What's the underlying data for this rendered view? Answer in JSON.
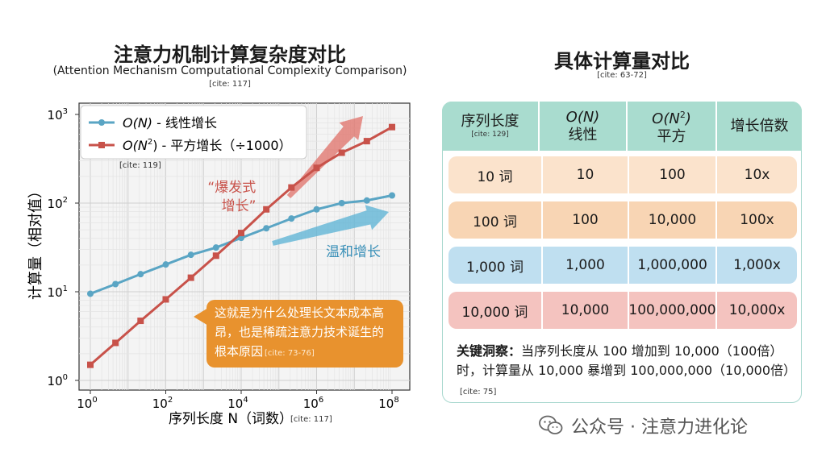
{
  "left": {
    "title": "注意力机制计算复杂度对比",
    "subtitle": "(Attention Mechanism Computational Complexity Comparison)",
    "cite": "[cite: 117]"
  },
  "chart_data": {
    "type": "line",
    "scale": {
      "x": "log10",
      "y": "log10"
    },
    "xlabel": "序列长度 N（词数）",
    "xlabel_cite": "[cite: 117]",
    "ylabel": "计算量（相对值）",
    "xlim": [
      1,
      100000000
    ],
    "ylim": [
      1,
      1000
    ],
    "x_ticks": [
      {
        "base": "10",
        "exp": "0"
      },
      {
        "base": "10",
        "exp": "2"
      },
      {
        "base": "10",
        "exp": "4"
      },
      {
        "base": "10",
        "exp": "6"
      },
      {
        "base": "10",
        "exp": "8"
      }
    ],
    "y_ticks": [
      {
        "base": "10",
        "exp": "0"
      },
      {
        "base": "10",
        "exp": "1"
      },
      {
        "base": "10",
        "exp": "2"
      },
      {
        "base": "10",
        "exp": "3"
      }
    ],
    "grid": true,
    "legend": {
      "position": "top-left",
      "cite": "[cite: 119]"
    },
    "series": [
      {
        "name": "O(N) - 线性增长",
        "name_parts": {
          "pre": "O(N)",
          "post": " - 线性增长"
        },
        "color": "#5aa5c4",
        "marker": "circle",
        "x": [
          1,
          4.64,
          21.5,
          100,
          464,
          2150,
          10000,
          46400,
          215000,
          1000000,
          4640000,
          21500000,
          100000000
        ],
        "y": [
          9.5,
          12.2,
          15.8,
          20.3,
          26.1,
          31.5,
          40.5,
          52,
          67,
          85,
          100,
          107,
          122
        ]
      },
      {
        "name": "O(N²) - 平方增长（÷1000）",
        "name_parts": {
          "pre": "O(N",
          "sup": "2",
          "post": ") - 平方增长（÷1000）"
        },
        "color": "#c8524a",
        "marker": "square",
        "x": [
          1,
          4.64,
          21.5,
          100,
          464,
          2150,
          10000,
          46400,
          215000,
          1000000,
          4640000,
          21500000,
          100000000
        ],
        "y": [
          1.5,
          2.65,
          4.7,
          8.2,
          14.4,
          25.5,
          46,
          85,
          150,
          250,
          370,
          500,
          720
        ]
      }
    ],
    "annotations": {
      "explosive": "“爆发式\n增长”",
      "gentle": "温和增长"
    }
  },
  "callout": {
    "text": "这就是为什么处理长文本成本高昂，也是稀疏注意力技术诞生的根本原因",
    "cite": "[cite: 73-76]"
  },
  "right": {
    "title": "具体计算量对比",
    "cite": "[cite: 63-72]"
  },
  "table": {
    "headers": [
      {
        "line1": "序列长度",
        "cite": "[cite: 129]"
      },
      {
        "math": "O(N)",
        "line2": "线性"
      },
      {
        "math_pre": "O(N",
        "sup": "2",
        "math_post": ")",
        "line2": "平方"
      },
      {
        "line1": "增长倍数"
      }
    ],
    "rows": [
      {
        "cells": [
          "10 词",
          "10",
          "100",
          "10x"
        ],
        "color": "#fbe3cc"
      },
      {
        "cells": [
          "100 词",
          "100",
          "10,000",
          "100x"
        ],
        "color": "#f8d5b4"
      },
      {
        "cells": [
          "1,000 词",
          "1,000",
          "1,000,000",
          "1,000x"
        ],
        "color": "#bfdff0"
      },
      {
        "cells": [
          "10,000 词",
          "10,000",
          "100,000,000",
          "10,000x"
        ],
        "color": "#f4c3bf"
      }
    ]
  },
  "insight": {
    "bold": "关键洞察：",
    "text": "当序列长度从 100 增加到 10,000（100倍）时，计算量从 10,000 暴增到 100,000,000（10,000倍）",
    "cite": "[cite: 75]"
  },
  "watermark": {
    "text": "公众号 · 注意力进化论",
    "icon": "wechat-icon"
  }
}
